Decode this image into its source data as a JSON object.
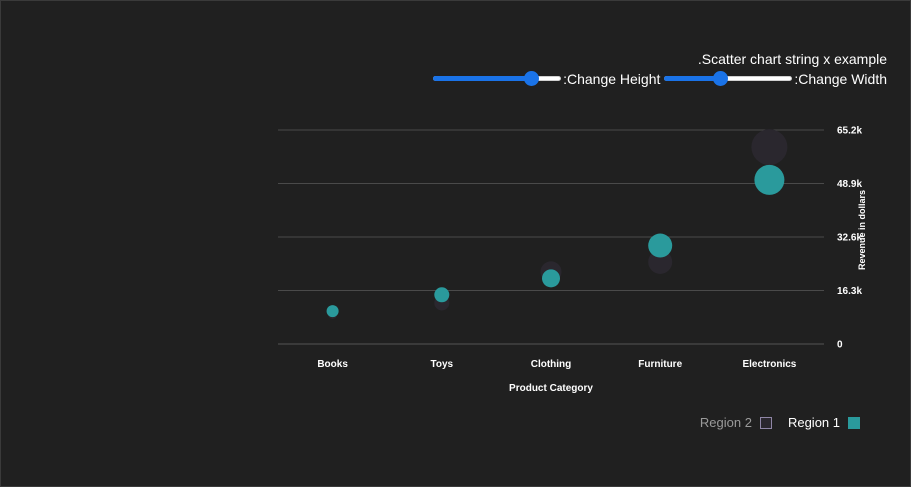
{
  "title": ".Scatter chart string x example",
  "controls": {
    "height_label": ":Change Height",
    "height_value": 0.77,
    "width_label": ":Change Width",
    "width_value": 0.44
  },
  "colors": {
    "background": "#202020",
    "region1": "#2a9a9c",
    "region2": "#2a272e",
    "region2_border": "#8f86a6",
    "slider_accent": "#1a73e8",
    "grid": "#4a4a4a"
  },
  "chart_data": {
    "type": "scatter",
    "categories": [
      "Books",
      "Toys",
      "Clothing",
      "Furniture",
      "Electronics"
    ],
    "xlabel": "Product Category",
    "ylabel": "Revenue in dollars",
    "yticks": [
      "0",
      "16.3k",
      "32.6k",
      "48.9k",
      "65.2k"
    ],
    "ylim": [
      0,
      65200
    ],
    "grid": true,
    "legend_position": "bottom-right",
    "series": [
      {
        "name": "Region 1",
        "values": [
          10000,
          15000,
          20000,
          30000,
          50000
        ],
        "sizes": [
          4,
          5,
          6,
          8,
          10
        ]
      },
      {
        "name": "Region 2",
        "values": [
          9000,
          12500,
          22000,
          25000,
          60000
        ],
        "sizes": [
          3,
          5,
          7,
          8,
          12
        ]
      }
    ]
  },
  "legend": {
    "region2_label": "Region 2",
    "region1_label": "Region 1"
  }
}
